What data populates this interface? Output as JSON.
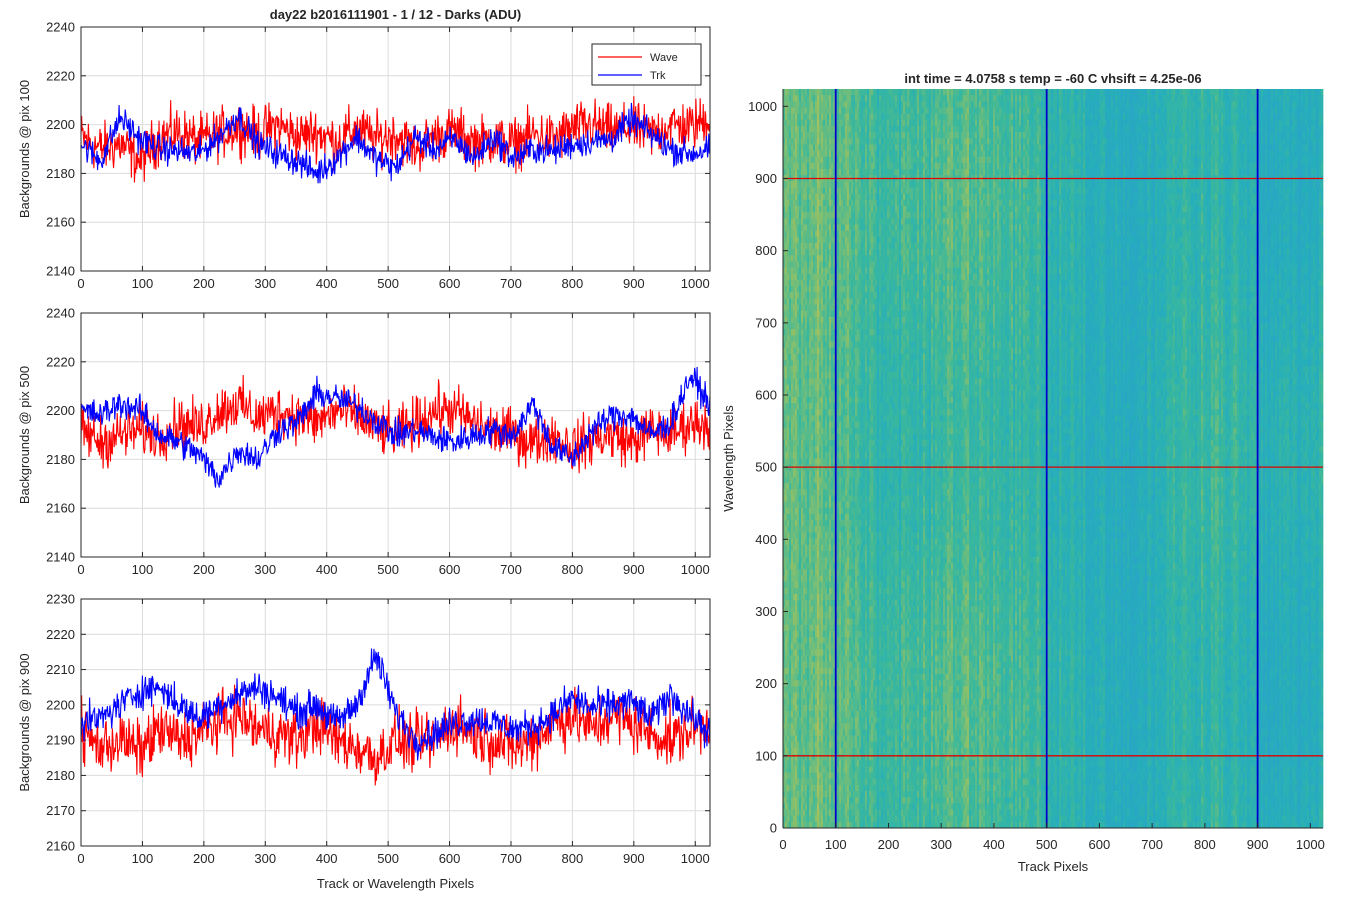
{
  "figure": {
    "title": "day22 b2016111901 - 1 / 12 - Darks (ADU)"
  },
  "chart_data": [
    {
      "type": "line",
      "name": "panel-pix-100",
      "xlabel": "",
      "ylabel": "Backgrounds @ pix 100",
      "xlim": [
        0,
        1024
      ],
      "ylim": [
        2140,
        2240
      ],
      "xticks": [
        0,
        100,
        200,
        300,
        400,
        500,
        600,
        700,
        800,
        900,
        1000
      ],
      "yticks": [
        2140,
        2160,
        2180,
        2200,
        2220,
        2240
      ],
      "grid": true,
      "legend": {
        "placement": "top-right",
        "entries": [
          "Wave",
          "Trk"
        ]
      },
      "series": [
        {
          "name": "Wave",
          "color": "#ff0000",
          "x": [
            0,
            32,
            64,
            96,
            128,
            160,
            192,
            224,
            256,
            288,
            320,
            352,
            384,
            416,
            448,
            480,
            512,
            544,
            576,
            608,
            640,
            672,
            704,
            736,
            768,
            800,
            832,
            864,
            896,
            928,
            960,
            992,
            1024
          ],
          "values": [
            2195,
            2190,
            2192,
            2185,
            2195,
            2197,
            2193,
            2196,
            2199,
            2196,
            2200,
            2195,
            2197,
            2193,
            2198,
            2194,
            2196,
            2190,
            2195,
            2197,
            2193,
            2194,
            2192,
            2196,
            2194,
            2198,
            2200,
            2197,
            2199,
            2196,
            2200,
            2199,
            2203
          ],
          "noise": 9
        },
        {
          "name": "Trk",
          "color": "#0000ff",
          "x": [
            0,
            32,
            64,
            96,
            128,
            160,
            192,
            224,
            256,
            288,
            320,
            352,
            384,
            416,
            448,
            480,
            512,
            544,
            576,
            608,
            640,
            672,
            704,
            736,
            768,
            800,
            832,
            864,
            896,
            928,
            960,
            992,
            1024
          ],
          "values": [
            2192,
            2185,
            2203,
            2194,
            2190,
            2189,
            2188,
            2195,
            2204,
            2192,
            2188,
            2185,
            2180,
            2186,
            2195,
            2186,
            2182,
            2195,
            2190,
            2194,
            2186,
            2195,
            2186,
            2190,
            2189,
            2192,
            2193,
            2194,
            2202,
            2196,
            2190,
            2188,
            2190
          ],
          "noise": 5
        }
      ]
    },
    {
      "type": "line",
      "name": "panel-pix-500",
      "xlabel": "",
      "ylabel": "Backgrounds @ pix 500",
      "xlim": [
        0,
        1024
      ],
      "ylim": [
        2140,
        2240
      ],
      "xticks": [
        0,
        100,
        200,
        300,
        400,
        500,
        600,
        700,
        800,
        900,
        1000
      ],
      "yticks": [
        2140,
        2160,
        2180,
        2200,
        2220,
        2240
      ],
      "grid": true,
      "series": [
        {
          "name": "Wave",
          "color": "#ff0000",
          "x": [
            0,
            32,
            64,
            96,
            128,
            160,
            192,
            224,
            256,
            288,
            320,
            352,
            384,
            416,
            448,
            480,
            512,
            544,
            576,
            608,
            640,
            672,
            704,
            736,
            768,
            800,
            832,
            864,
            896,
            928,
            960,
            992,
            1024
          ],
          "values": [
            2192,
            2187,
            2190,
            2192,
            2190,
            2195,
            2193,
            2200,
            2203,
            2197,
            2200,
            2198,
            2195,
            2200,
            2198,
            2193,
            2190,
            2195,
            2200,
            2200,
            2195,
            2192,
            2190,
            2187,
            2190,
            2185,
            2188,
            2190,
            2187,
            2192,
            2190,
            2195,
            2195
          ],
          "noise": 9
        },
        {
          "name": "Trk",
          "color": "#0000ff",
          "x": [
            0,
            32,
            64,
            96,
            128,
            160,
            192,
            224,
            256,
            288,
            320,
            352,
            384,
            416,
            448,
            480,
            512,
            544,
            576,
            608,
            640,
            672,
            704,
            736,
            768,
            800,
            832,
            864,
            896,
            928,
            960,
            992,
            1024
          ],
          "values": [
            2200,
            2198,
            2203,
            2200,
            2190,
            2187,
            2182,
            2172,
            2184,
            2180,
            2192,
            2195,
            2207,
            2205,
            2202,
            2196,
            2190,
            2192,
            2189,
            2187,
            2190,
            2192,
            2190,
            2203,
            2185,
            2180,
            2192,
            2198,
            2198,
            2190,
            2195,
            2214,
            2203
          ],
          "noise": 5
        }
      ]
    },
    {
      "type": "line",
      "name": "panel-pix-900",
      "xlabel": "Track or Wavelength Pixels",
      "ylabel": "Backgrounds @ pix 900",
      "xlim": [
        0,
        1024
      ],
      "ylim": [
        2160,
        2230
      ],
      "xticks": [
        0,
        100,
        200,
        300,
        400,
        500,
        600,
        700,
        800,
        900,
        1000
      ],
      "yticks": [
        2160,
        2170,
        2180,
        2190,
        2200,
        2210,
        2220,
        2230
      ],
      "grid": true,
      "series": [
        {
          "name": "Wave",
          "color": "#ff0000",
          "x": [
            0,
            32,
            64,
            96,
            128,
            160,
            192,
            224,
            256,
            288,
            320,
            352,
            384,
            416,
            448,
            480,
            512,
            544,
            576,
            608,
            640,
            672,
            704,
            736,
            768,
            800,
            832,
            864,
            896,
            928,
            960,
            992,
            1024
          ],
          "values": [
            2192,
            2188,
            2190,
            2187,
            2193,
            2190,
            2192,
            2195,
            2197,
            2193,
            2192,
            2190,
            2195,
            2190,
            2188,
            2185,
            2190,
            2189,
            2190,
            2195,
            2192,
            2190,
            2188,
            2190,
            2195,
            2197,
            2193,
            2197,
            2195,
            2192,
            2190,
            2193,
            2195
          ],
          "noise": 7
        },
        {
          "name": "Trk",
          "color": "#0000ff",
          "x": [
            0,
            32,
            64,
            96,
            128,
            160,
            192,
            224,
            256,
            288,
            320,
            352,
            384,
            416,
            448,
            480,
            512,
            544,
            576,
            608,
            640,
            672,
            704,
            736,
            768,
            800,
            832,
            864,
            896,
            928,
            960,
            992,
            1024
          ],
          "values": [
            2195,
            2196,
            2200,
            2204,
            2205,
            2200,
            2196,
            2200,
            2203,
            2205,
            2202,
            2198,
            2200,
            2195,
            2200,
            2214,
            2198,
            2190,
            2192,
            2195,
            2196,
            2195,
            2193,
            2194,
            2197,
            2202,
            2199,
            2200,
            2201,
            2196,
            2203,
            2197,
            2192
          ],
          "noise": 4
        }
      ]
    },
    {
      "type": "heatmap",
      "name": "dark-frame-image",
      "title": "int time = 4.0758 s    temp = -60 C    vhsift = 4.25e-06",
      "xlabel": "Track Pixels",
      "ylabel": "Wavelength Pixels",
      "xlim": [
        0,
        1024
      ],
      "ylim": [
        0,
        1024
      ],
      "xticks": [
        0,
        100,
        200,
        300,
        400,
        500,
        600,
        700,
        800,
        900,
        1000
      ],
      "yticks": [
        0,
        100,
        200,
        300,
        400,
        500,
        600,
        700,
        800,
        900,
        1000
      ],
      "colormap": [
        "#2aa3c8",
        "#26aebb",
        "#3bb89b",
        "#8cc06a",
        "#c7c251"
      ],
      "vertical_lines": {
        "color": "#0000cc",
        "x": [
          100,
          500,
          900
        ]
      },
      "horizontal_lines": {
        "color": "#e00000",
        "y": [
          100,
          500,
          900
        ]
      }
    }
  ]
}
